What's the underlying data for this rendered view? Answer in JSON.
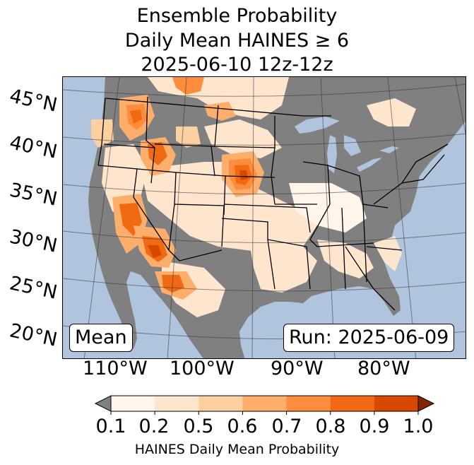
{
  "title": {
    "line1": "Ensemble Probability",
    "line2": "Daily Mean HAINES ≥ 6",
    "line3": "2025-06-10 12z-12z"
  },
  "map": {
    "latitude_labels": [
      "45°N",
      "40°N",
      "35°N",
      "30°N",
      "25°N",
      "20°N"
    ],
    "longitude_labels": [
      "110°W",
      "100°W",
      "90°W",
      "80°W"
    ],
    "stat_label": "Mean",
    "run_label": "Run: 2025-06-09",
    "colors": {
      "ocean": "#b0c4de",
      "land_below_threshold": "#808080",
      "state_border": "#000000"
    }
  },
  "colorbar": {
    "label": "HAINES Daily Mean Probability",
    "ticks": [
      "0.1",
      "0.2",
      "0.5",
      "0.6",
      "0.7",
      "0.8",
      "0.9",
      "1.0"
    ],
    "under_color": "#808080",
    "over_color": "#7f2704",
    "bins": [
      {
        "from": 0.1,
        "to": 0.2,
        "color": "#fff5eb"
      },
      {
        "from": 0.2,
        "to": 0.5,
        "color": "#fee6ce"
      },
      {
        "from": 0.5,
        "to": 0.6,
        "color": "#fdd0a2"
      },
      {
        "from": 0.6,
        "to": 0.7,
        "color": "#fdae6b"
      },
      {
        "from": 0.7,
        "to": 0.8,
        "color": "#fd8d3c"
      },
      {
        "from": 0.8,
        "to": 0.9,
        "color": "#f16913"
      },
      {
        "from": 0.9,
        "to": 1.0,
        "color": "#d94801"
      }
    ]
  }
}
